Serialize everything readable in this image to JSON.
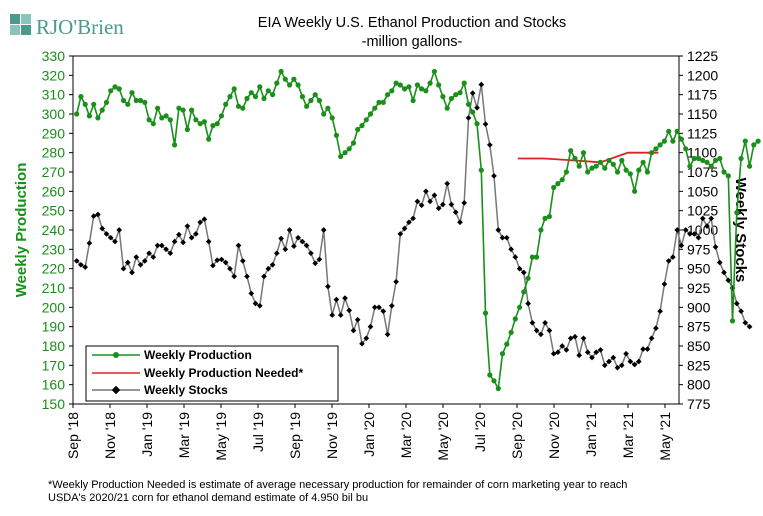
{
  "logo": {
    "text": "RJO'Brien",
    "color": "#4a9a8e"
  },
  "chart_data": {
    "type": "line",
    "title": "EIA Weekly U.S. Ethanol Production and Stocks",
    "subtitle": "-million  gallons-",
    "ylabel_left": "Weekly Production",
    "ylabel_right": "Weekly Stocks",
    "ylim_left": [
      150,
      330
    ],
    "ylim_right": [
      775,
      1225
    ],
    "yticks_left": [
      150,
      160,
      170,
      180,
      190,
      200,
      210,
      220,
      230,
      240,
      250,
      260,
      270,
      280,
      290,
      300,
      310,
      320,
      330
    ],
    "yticks_right": [
      775,
      800,
      825,
      850,
      875,
      900,
      925,
      950,
      975,
      1000,
      1025,
      1050,
      1075,
      1100,
      1125,
      1150,
      1175,
      1200,
      1225
    ],
    "xticks": [
      "Sep '18",
      "Nov '18",
      "Jan '19",
      "Mar '19",
      "May '19",
      "Jul '19",
      "Sep '19",
      "Nov '19",
      "Jan '20",
      "Mar '20",
      "May '20",
      "Jul '20",
      "Sep '20",
      "Nov '20",
      "Jan '21",
      "Mar '21",
      "May '21"
    ],
    "grid": false,
    "legend_position": "bottom-left",
    "colors": {
      "production": "#1a8f1a",
      "needed": "#e02020",
      "stocks": "#777777",
      "stocks_marker": "#000000",
      "left_axis": "#1a8f1a"
    },
    "footnote_line1": "*Weekly Production Needed is estimate of average necessary production for remainder of corn marketing year to reach",
    "footnote_line2": "USDA's 2020/21 corn for ethanol demand estimate of 4.950 bil bu",
    "series": [
      {
        "name": "Weekly Production",
        "x_start": "2018-09-07",
        "week_step_days": 7,
        "values": [
          300,
          309,
          305,
          299,
          305,
          298,
          302,
          306,
          312,
          314,
          313,
          307,
          305,
          311,
          307,
          307,
          306,
          297,
          295,
          303,
          298,
          299,
          297,
          284,
          303,
          302,
          292,
          302,
          297,
          295,
          296,
          287,
          294,
          295,
          299,
          305,
          309,
          313,
          304,
          303,
          308,
          311,
          309,
          314,
          308,
          312,
          310,
          316,
          322,
          318,
          315,
          318,
          315,
          309,
          304,
          307,
          310,
          307,
          300,
          303,
          298,
          289,
          278,
          280,
          282,
          285,
          292,
          294,
          297,
          300,
          303,
          306,
          306,
          310,
          312,
          316,
          315,
          313,
          314,
          307,
          315,
          313,
          312,
          316,
          322,
          315,
          309,
          303,
          308,
          310,
          311,
          316,
          305,
          301,
          295,
          271,
          197,
          165,
          162,
          158,
          176,
          181,
          187,
          194,
          200,
          208,
          215,
          226,
          226,
          240,
          246,
          247,
          262,
          264,
          266,
          270,
          281,
          277,
          273,
          280,
          270,
          272,
          273,
          275,
          272,
          276,
          274,
          270,
          276,
          271,
          269,
          260,
          271,
          275,
          270,
          280,
          282,
          284,
          286,
          291,
          286,
          291,
          287,
          282,
          273,
          277,
          277,
          276,
          275,
          273,
          276,
          277,
          270,
          268,
          193,
          249,
          277,
          286,
          273,
          284,
          286
        ],
        "line_color": "#1a8f1a",
        "marker": "circle"
      },
      {
        "name": "Weekly Production Needed*",
        "x": [
          "2020-09-01",
          "2020-10-15",
          "2020-12-01",
          "2021-01-15",
          "2021-03-01",
          "2021-04-20"
        ],
        "values": [
          277,
          277,
          276,
          275,
          280,
          280
        ],
        "line_color": "#e02020",
        "marker": "none"
      },
      {
        "name": "Weekly Stocks",
        "x_start": "2018-09-07",
        "week_step_days": 7,
        "values": [
          960,
          955,
          952,
          983,
          1018,
          1020,
          1002,
          995,
          990,
          985,
          1000,
          950,
          958,
          945,
          965,
          955,
          960,
          970,
          965,
          980,
          980,
          975,
          970,
          985,
          994,
          984,
          1005,
          990,
          995,
          1010,
          1014,
          985,
          954,
          961,
          962,
          958,
          950,
          940,
          980,
          960,
          940,
          918,
          905,
          902,
          940,
          950,
          955,
          970,
          989,
          975,
          1000,
          979,
          990,
          985,
          980,
          970,
          957,
          962,
          1000,
          927,
          890,
          910,
          890,
          912,
          896,
          870,
          884,
          853,
          860,
          875,
          900,
          900,
          895,
          865,
          902,
          933,
          995,
          1002,
          1010,
          1015,
          1037,
          1032,
          1050,
          1037,
          1045,
          1028,
          1033,
          1060,
          1033,
          1023,
          1010,
          1035,
          1145,
          1177,
          1158,
          1188,
          1137,
          1110,
          1070,
          1000,
          990,
          990,
          975,
          965,
          950,
          945,
          905,
          880,
          870,
          865,
          880,
          870,
          840,
          842,
          850,
          845,
          860,
          862,
          838,
          860,
          842,
          835,
          842,
          845,
          825,
          830,
          835,
          822,
          825,
          840,
          830,
          826,
          830,
          846,
          846,
          860,
          873,
          895,
          930,
          960,
          965,
          1000,
          980,
          1000,
          995,
          995,
          990,
          1015,
          1005,
          1015,
          978,
          958,
          945,
          935,
          925,
          905,
          895,
          880,
          875
        ],
        "line_color": "#777777",
        "marker": "diamond"
      }
    ]
  }
}
